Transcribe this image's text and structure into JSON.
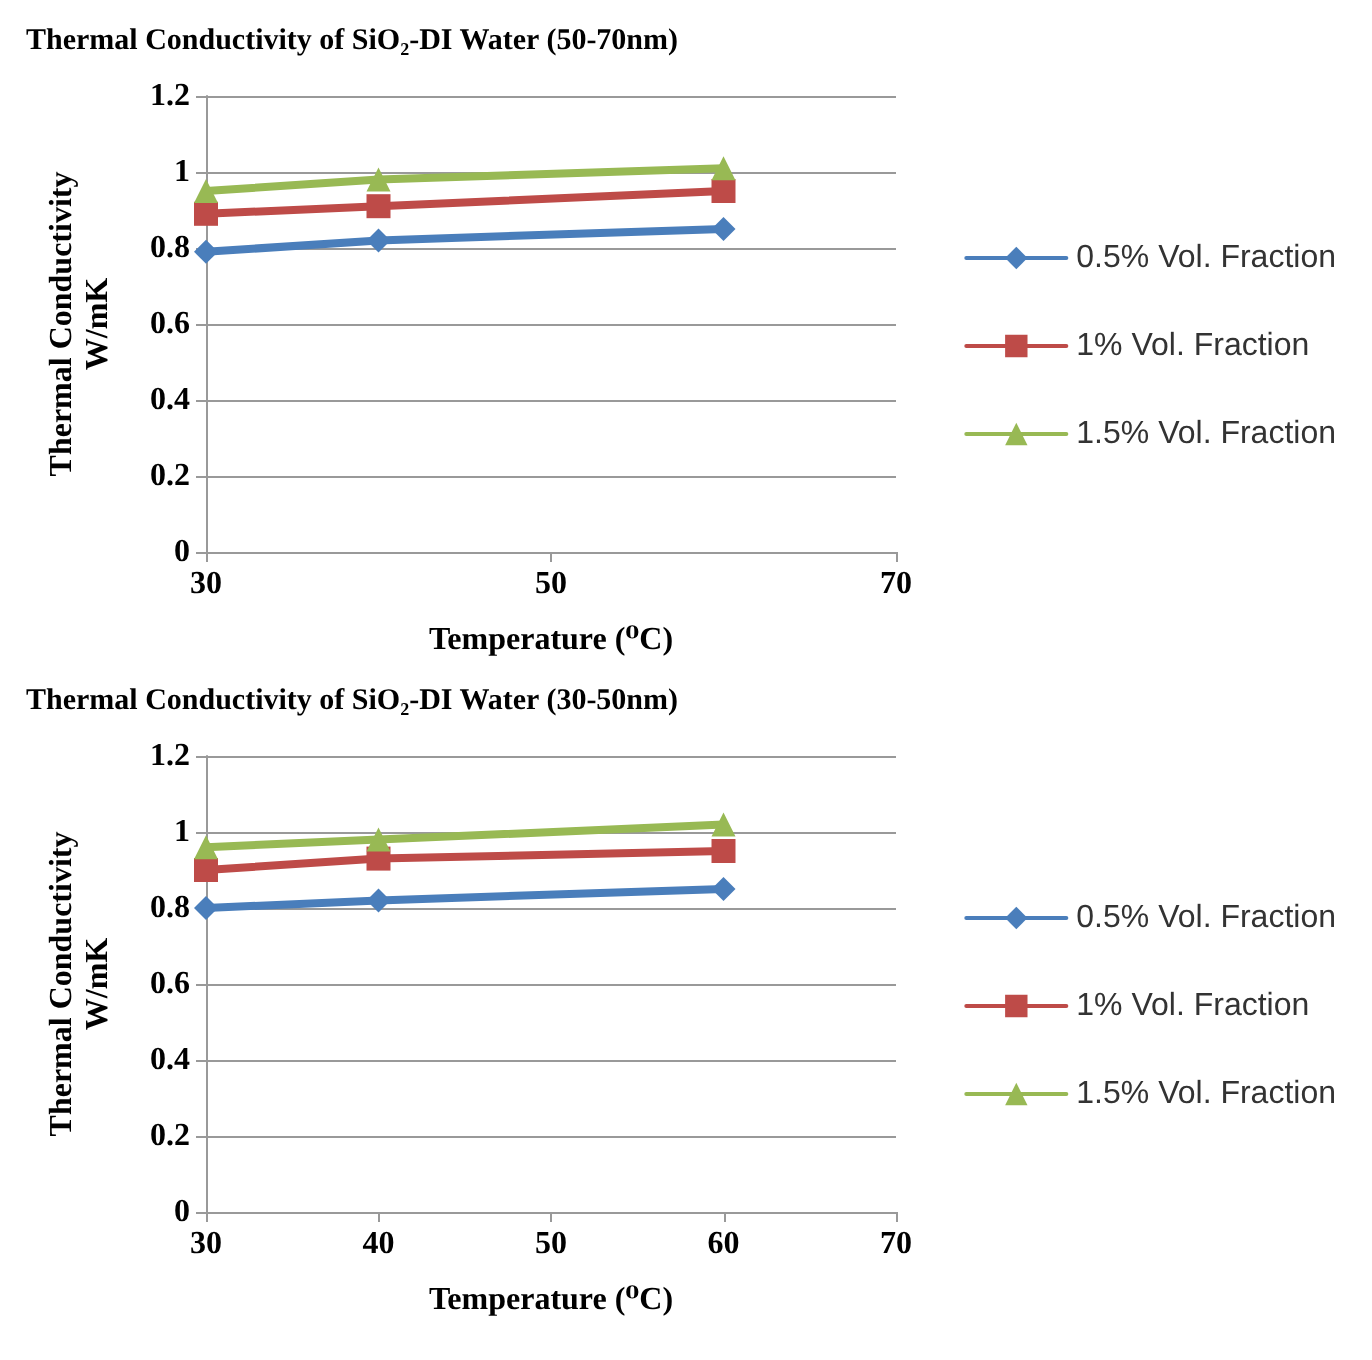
{
  "chart_data": [
    {
      "type": "line",
      "title": "Thermal Conductivity of SiO₂-DI Water (50-70nm)",
      "xlabel": "Temperature (⁰C)",
      "ylabel": "Thermal Conductivity\nW/mK",
      "x": [
        30,
        40,
        60
      ],
      "xlim": [
        30,
        70
      ],
      "xticks": [
        30,
        50,
        70
      ],
      "ylim": [
        0,
        1.2
      ],
      "yticks": [
        0,
        0.2,
        0.4,
        0.6,
        0.8,
        1,
        1.2
      ],
      "grid": "y",
      "legend": "right",
      "series": [
        {
          "name": "0.5% Vol. Fraction",
          "color": "#4a7ebb",
          "marker": "diamond",
          "values": [
            0.79,
            0.82,
            0.85
          ]
        },
        {
          "name": "1% Vol. Fraction",
          "color": "#be4b48",
          "marker": "square",
          "values": [
            0.89,
            0.91,
            0.95
          ]
        },
        {
          "name": "1.5% Vol. Fraction",
          "color": "#98b954",
          "marker": "triangle",
          "values": [
            0.95,
            0.98,
            1.01
          ]
        }
      ]
    },
    {
      "type": "line",
      "title": "Thermal Conductivity of SiO₂-DI Water (30-50nm)",
      "xlabel": "Temperature (⁰C)",
      "ylabel": "Thermal Conductivity\nW/mK",
      "x": [
        30,
        40,
        60
      ],
      "xlim": [
        30,
        70
      ],
      "xticks": [
        30,
        40,
        50,
        60,
        70
      ],
      "ylim": [
        0,
        1.2
      ],
      "yticks": [
        0,
        0.2,
        0.4,
        0.6,
        0.8,
        1,
        1.2
      ],
      "grid": "y",
      "legend": "right",
      "series": [
        {
          "name": "0.5% Vol. Fraction",
          "color": "#4a7ebb",
          "marker": "diamond",
          "values": [
            0.8,
            0.82,
            0.85
          ]
        },
        {
          "name": "1% Vol. Fraction",
          "color": "#be4b48",
          "marker": "square",
          "values": [
            0.9,
            0.93,
            0.95
          ]
        },
        {
          "name": "1.5% Vol. Fraction",
          "color": "#98b954",
          "marker": "triangle",
          "values": [
            0.96,
            0.98,
            1.02
          ]
        }
      ]
    }
  ]
}
